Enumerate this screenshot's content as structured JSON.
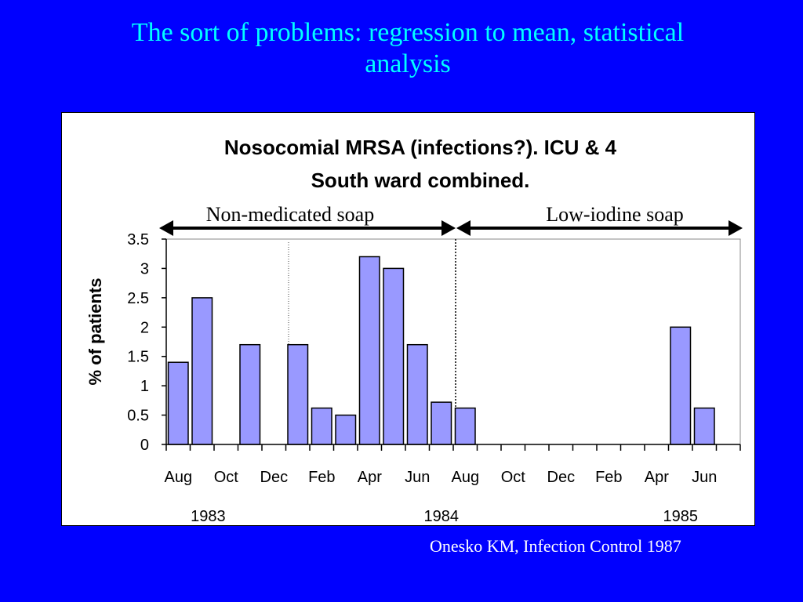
{
  "slide": {
    "title_line1": "The sort of problems: regression to mean, statistical",
    "title_line2": "analysis",
    "citation": "Onesko KM, Infection Control 1987"
  },
  "colors": {
    "background": "#0000ff",
    "title": "#00ffff",
    "bar_fill": "#9999ff",
    "citation": "#ffffff"
  },
  "chart_data": {
    "type": "bar",
    "title_line1": "Nosocomial MRSA (infections?). ICU & 4",
    "title_line2": "South ward combined.",
    "ylabel": "% of patients",
    "ylim": [
      0,
      3.5
    ],
    "yticks": [
      "0",
      "0.5",
      "1",
      "1.5",
      "2",
      "2.5",
      "3",
      "3.5"
    ],
    "ytick_values": [
      0,
      0.5,
      1,
      1.5,
      2,
      2.5,
      3,
      3.5
    ],
    "categories": [
      "Aug 1983",
      "Sep 1983",
      "Oct 1983",
      "Nov 1983",
      "Dec 1983",
      "Jan 1984",
      "Feb 1984",
      "Mar 1984",
      "Apr 1984",
      "May 1984",
      "Jun 1984",
      "Jul 1984",
      "Aug 1984",
      "Sep 1984",
      "Oct 1984",
      "Nov 1984",
      "Dec 1984",
      "Jan 1985",
      "Feb 1985",
      "Mar 1985",
      "Apr 1985",
      "May 1985",
      "Jun 1985",
      "Jul 1985"
    ],
    "values": [
      1.4,
      2.5,
      0,
      1.7,
      0,
      1.7,
      0.62,
      0.5,
      3.2,
      3.0,
      1.7,
      0.72,
      0.62,
      0,
      0,
      0,
      0,
      0,
      0,
      0,
      0,
      2.0,
      0.62,
      0
    ],
    "month_labels": [
      "Aug",
      "Oct",
      "Dec",
      "Feb",
      "Apr",
      "Jun",
      "Aug",
      "Oct",
      "Dec",
      "Feb",
      "Apr",
      "Jun"
    ],
    "year_labels": [
      "1983",
      "1984",
      "1985"
    ],
    "periods": [
      {
        "label": "Non-medicated soap"
      },
      {
        "label": "Low-iodine soap"
      }
    ],
    "grid": false,
    "legend": "none"
  }
}
